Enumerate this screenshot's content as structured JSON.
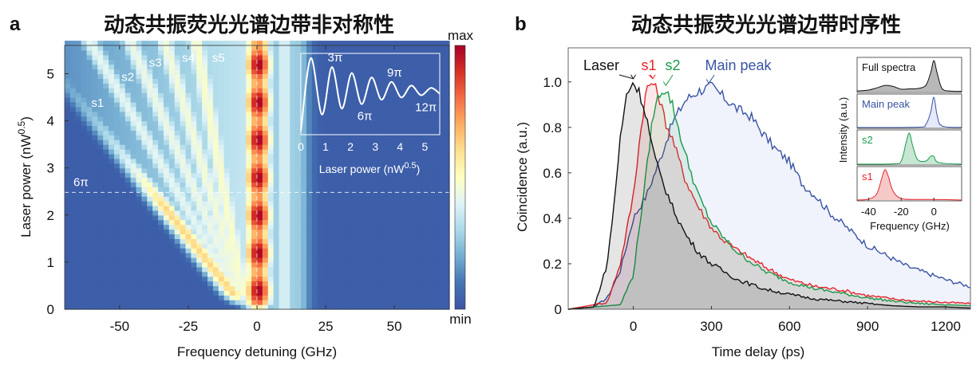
{
  "chart_data": [
    {
      "type": "heatmap",
      "panel_label": "a",
      "title": "动态共振荧光光谱边带非对称性",
      "xlabel": "Frequency detuning (GHz)",
      "ylabel": "Laser power (nW",
      "ylabel_sup": "0.5",
      "ylabel_close": ")",
      "xlim": [
        -70,
        70
      ],
      "ylim": [
        0,
        5.6
      ],
      "xticks": [
        "-50",
        "-25",
        "0",
        "25",
        "50"
      ],
      "xtick_values": [
        -50,
        -25,
        0,
        25,
        50
      ],
      "yticks": [
        "0",
        "1",
        "2",
        "3",
        "4",
        "5"
      ],
      "ytick_values": [
        0,
        1,
        2,
        3,
        4,
        5
      ],
      "colorbar": {
        "max_label": "max",
        "min_label": "min",
        "colormap": [
          "#3a54a4",
          "#4575b4",
          "#74add1",
          "#abd9e9",
          "#e0f3f8",
          "#ffffbf",
          "#fee090",
          "#fdae61",
          "#f46d43",
          "#d73027",
          "#a50026"
        ]
      },
      "sideband_labels": [
        {
          "text": "s1",
          "freq": -58,
          "power": 4.3
        },
        {
          "text": "s2",
          "freq": -47,
          "power": 4.85
        },
        {
          "text": "s3",
          "freq": -37,
          "power": 5.15
        },
        {
          "text": "s4",
          "freq": -25,
          "power": 5.25
        },
        {
          "text": "s5",
          "freq": -14,
          "power": 5.25
        }
      ],
      "reference_line": {
        "label": "6π",
        "power": 2.48
      },
      "inset": {
        "type": "line",
        "xlabel": "Laser power (nW",
        "xlabel_sup": "0.5",
        "xlabel_close": ")",
        "xlim": [
          0,
          5.6
        ],
        "xticks": [
          "0",
          "1",
          "2",
          "3",
          "4",
          "5"
        ],
        "xtick_values": [
          0,
          1,
          2,
          3,
          4,
          5
        ],
        "x": [
          0,
          0.4,
          0.85,
          1.25,
          1.65,
          2.05,
          2.45,
          2.85,
          3.25,
          3.65,
          4.05,
          4.45,
          4.85,
          5.25,
          5.6
        ],
        "y": [
          0.02,
          1.0,
          0.24,
          0.88,
          0.32,
          0.8,
          0.38,
          0.74,
          0.44,
          0.68,
          0.47,
          0.63,
          0.5,
          0.6,
          0.52
        ],
        "annotations": [
          {
            "text": "3π",
            "x": 1.25,
            "y": 0.88
          },
          {
            "text": "6π",
            "x": 2.45,
            "y": 0.38
          },
          {
            "text": "9π",
            "x": 3.65,
            "y": 0.68
          },
          {
            "text": "12π",
            "x": 4.85,
            "y": 0.5
          }
        ]
      }
    },
    {
      "type": "area",
      "panel_label": "b",
      "title": "动态共振荧光光谱边带时序性",
      "xlabel": "Time delay (ps)",
      "ylabel": "Coincidence (a.u.)",
      "xlim": [
        -250,
        1295
      ],
      "ylim": [
        0,
        1.15
      ],
      "xticks": [
        "0",
        "300",
        "600",
        "900",
        "1200"
      ],
      "xtick_values": [
        0,
        300,
        600,
        900,
        1200
      ],
      "yticks": [
        "0",
        "0.2",
        "0.4",
        "0.6",
        "0.8",
        "1.0"
      ],
      "ytick_values": [
        0,
        0.2,
        0.4,
        0.6,
        0.8,
        1.0
      ],
      "series": [
        {
          "name": "Main peak",
          "color": "#3a54a4",
          "fill": "rgba(90,110,220,0.09)",
          "x": [
            -250,
            -150,
            -100,
            -50,
            0,
            50,
            100,
            150,
            200,
            250,
            300,
            350,
            400,
            450,
            500,
            550,
            600,
            650,
            700,
            750,
            800,
            850,
            900,
            950,
            1000,
            1050,
            1100,
            1150,
            1200,
            1295
          ],
          "y": [
            0,
            0.01,
            0.05,
            0.17,
            0.4,
            0.5,
            0.65,
            0.82,
            0.92,
            0.96,
            0.98,
            0.93,
            0.88,
            0.85,
            0.77,
            0.7,
            0.65,
            0.55,
            0.5,
            0.43,
            0.38,
            0.33,
            0.28,
            0.25,
            0.22,
            0.19,
            0.17,
            0.15,
            0.13,
            0.1
          ]
        },
        {
          "name": "s1",
          "color": "#e8262a",
          "fill": "rgba(220,40,40,0.1)",
          "x": [
            -250,
            -100,
            -50,
            0,
            25,
            50,
            75,
            100,
            125,
            150,
            200,
            250,
            300,
            350,
            400,
            500,
            600,
            700,
            800,
            900,
            1000,
            1100,
            1200,
            1295
          ],
          "y": [
            0,
            0.03,
            0.2,
            0.5,
            0.75,
            0.97,
            1.0,
            0.93,
            0.82,
            0.75,
            0.57,
            0.45,
            0.36,
            0.3,
            0.26,
            0.19,
            0.13,
            0.1,
            0.085,
            0.06,
            0.045,
            0.035,
            0.03,
            0.025
          ]
        },
        {
          "name": "s2",
          "color": "#1a9a4a",
          "fill": "rgba(30,160,80,0.1)",
          "x": [
            -250,
            -50,
            0,
            50,
            75,
            100,
            125,
            150,
            200,
            250,
            300,
            350,
            400,
            500,
            600,
            700,
            800,
            900,
            1000,
            1100,
            1200,
            1295
          ],
          "y": [
            0,
            0.02,
            0.15,
            0.6,
            0.85,
            0.95,
            0.97,
            0.9,
            0.68,
            0.5,
            0.38,
            0.31,
            0.25,
            0.17,
            0.12,
            0.09,
            0.07,
            0.05,
            0.035,
            0.025,
            0.02,
            0.015
          ]
        },
        {
          "name": "Laser",
          "color": "#111111",
          "fill": "rgba(0,0,0,0.1)",
          "x": [
            -250,
            -150,
            -100,
            -75,
            -50,
            -25,
            0,
            25,
            50,
            75,
            100,
            150,
            200,
            250,
            300,
            400,
            500,
            600,
            700,
            800,
            900,
            1000,
            1100,
            1200,
            1295
          ],
          "y": [
            0,
            0.01,
            0.2,
            0.45,
            0.75,
            0.95,
            1.0,
            0.95,
            0.85,
            0.7,
            0.6,
            0.45,
            0.33,
            0.25,
            0.2,
            0.13,
            0.09,
            0.065,
            0.045,
            0.035,
            0.025,
            0.015,
            0.01,
            0.01,
            0.005
          ]
        }
      ],
      "inset": {
        "type": "area",
        "ylabel": "Intensity (a.u.)",
        "xlabel": "Frequency (GHz)",
        "xlim": [
          -47,
          17
        ],
        "xticks": [
          "-40",
          "-20",
          "0"
        ],
        "xtick_values": [
          -40,
          -20,
          0
        ],
        "panels": [
          {
            "name": "Full spectra",
            "color": "#111111",
            "fill": "rgba(0,0,0,0.28)",
            "x": [
              -47,
              -40,
              -35,
              -30,
              -25,
              -20,
              -15,
              -10,
              -5,
              -2,
              0,
              2,
              5,
              10,
              17
            ],
            "y": [
              0.02,
              0.05,
              0.12,
              0.2,
              0.17,
              0.08,
              0.09,
              0.1,
              0.2,
              0.6,
              1.0,
              0.6,
              0.1,
              0.02,
              0.01
            ]
          },
          {
            "name": "Main peak",
            "color": "#3a54a4",
            "fill": "rgba(90,110,220,0.15)",
            "x": [
              -47,
              -10,
              -5,
              -2,
              0,
              2,
              5,
              17
            ],
            "y": [
              0,
              0.01,
              0.1,
              0.5,
              1.0,
              0.4,
              0.05,
              0
            ]
          },
          {
            "name": "s2",
            "color": "#1a9a4a",
            "fill": "rgba(30,160,80,0.25)",
            "x": [
              -47,
              -25,
              -20,
              -17,
              -15,
              -13,
              -10,
              -5,
              -2,
              0,
              3,
              17
            ],
            "y": [
              0,
              0.01,
              0.1,
              0.7,
              1.0,
              0.6,
              0.15,
              0.1,
              0.25,
              0.25,
              0.05,
              0
            ]
          },
          {
            "name": "s1",
            "color": "#e8262a",
            "fill": "rgba(220,40,40,0.25)",
            "x": [
              -47,
              -40,
              -35,
              -32,
              -30,
              -28,
              -25,
              -20,
              -10,
              0,
              17
            ],
            "y": [
              0,
              0.03,
              0.2,
              0.7,
              1.0,
              0.8,
              0.3,
              0.05,
              0.02,
              0.02,
              0
            ]
          }
        ]
      }
    }
  ]
}
